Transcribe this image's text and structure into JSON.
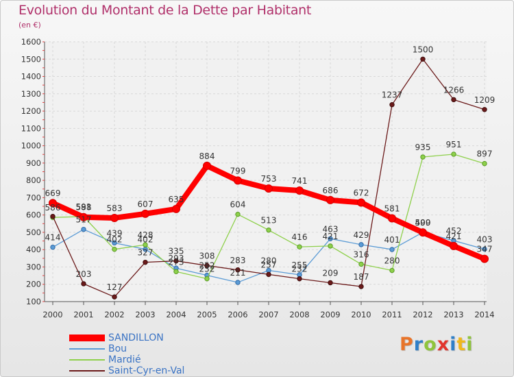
{
  "title": "Evolution du Montant de la Dette par Habitant",
  "subtitle": "(en €)",
  "brand": "Proxiti",
  "chart_data": {
    "type": "line",
    "title": "Evolution du Montant de la Dette par Habitant",
    "ylabel": "(en €)",
    "xlabel": "",
    "ylim": [
      100,
      1600
    ],
    "yticks": [
      100,
      200,
      300,
      400,
      500,
      600,
      700,
      800,
      900,
      1000,
      1100,
      1200,
      1300,
      1400,
      1500,
      1600
    ],
    "categories": [
      "2000",
      "2001",
      "2002",
      "2003",
      "2004",
      "2005",
      "2006",
      "2007",
      "2008",
      "2009",
      "2010",
      "2011",
      "2012",
      "2013",
      "2014"
    ],
    "grid": true,
    "legend_position": "bottom-left",
    "series": [
      {
        "name": "SANDILLON",
        "color": "#ff0000",
        "values": [
          669,
          588,
          583,
          607,
          635,
          884,
          799,
          753,
          741,
          686,
          672,
          581,
          499,
          421,
          347
        ],
        "labels": [
          "669",
          "588",
          "583",
          "607",
          "635",
          "884",
          "799",
          "753",
          "741",
          "686",
          "672",
          "581",
          "499",
          "421",
          "347"
        ]
      },
      {
        "name": "Bou",
        "color": "#5b9bd5",
        "values": [
          414,
          517,
          439,
          402,
          293,
          252,
          211,
          280,
          255,
          463,
          429,
          401,
          500,
          452,
          403
        ],
        "labels": [
          "414",
          "517",
          "439",
          "402",
          "293",
          "252",
          "211",
          "280",
          "255",
          "463",
          "429",
          "401",
          "500",
          "452",
          "403"
        ]
      },
      {
        "name": "Mardié",
        "color": "#8ed04b",
        "values": [
          586,
          591,
          402,
          428,
          273,
          232,
          604,
          513,
          416,
          421,
          316,
          280,
          935,
          951,
          897
        ],
        "labels": [
          "586",
          "591",
          "402",
          "428",
          "273",
          "232",
          "604",
          "513",
          "416",
          "421",
          "316",
          "280",
          "935",
          "951",
          "897"
        ]
      },
      {
        "name": "Saint-Cyr-en-Val",
        "color": "#6b1a1a",
        "values": [
          592,
          203,
          127,
          327,
          335,
          308,
          283,
          257,
          232,
          209,
          187,
          1237,
          1500,
          1266,
          1209
        ],
        "labels": [
          "",
          "203",
          "127",
          "327",
          "335",
          "308",
          "283",
          "257",
          "232",
          "209",
          "187",
          "1237",
          "1500",
          "1266",
          "1209"
        ]
      }
    ]
  }
}
